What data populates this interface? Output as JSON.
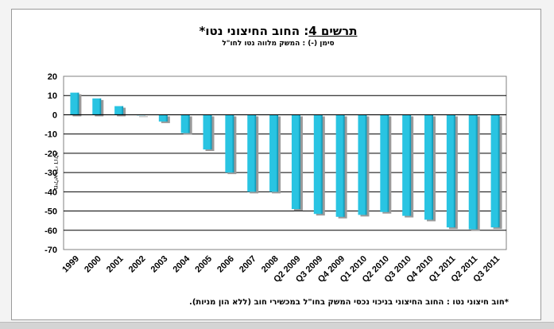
{
  "header": {
    "title_prefix": "תרשים 4",
    "title_rest": ": החוב החיצוני נטו*",
    "subtitle": "סימן (-) : המשק מלווה נטו לחו\"ל"
  },
  "footnote": "*חוב חיצוני נטו : החוב החיצוני בניכוי נכסי המשק בחו\"ל במכשירי חוב (ללא הון מניות).",
  "colors": {
    "bar_fill": "#29c4e2",
    "bar_dark": "#0a8fad",
    "bar_shadow": "#9a9a9a",
    "grid": "#000000"
  },
  "chart_data": {
    "type": "bar",
    "title": "תרשים 4: החוב החיצוני נטו*",
    "subtitle": "סימן (-) : המשק מלווה נטו לחו\"ל",
    "ylabel": "מיליארדי דולר",
    "xlabel": "",
    "ylim": [
      -70,
      20
    ],
    "yticks": [
      20,
      10,
      0,
      -10,
      -20,
      -30,
      -40,
      -50,
      -60,
      -70
    ],
    "grid": true,
    "categories": [
      "1999",
      "2000",
      "2001",
      "2002",
      "2003",
      "2004",
      "2005",
      "2006",
      "2007",
      "2008",
      "Q2 2009",
      "Q3 2009",
      "Q4 2009",
      "Q1 2010",
      "Q2 2010",
      "Q3 2010",
      "Q4 2010",
      "Q1 2011",
      "Q2 2011",
      "Q3 2011"
    ],
    "values": [
      11.5,
      8.5,
      4.5,
      0,
      -3.5,
      -9.5,
      -18,
      -30,
      -40,
      -40,
      -49,
      -51.5,
      -53,
      -52,
      -50.5,
      -52.5,
      -54.5,
      -58.5,
      -59.5,
      -58.5
    ]
  }
}
